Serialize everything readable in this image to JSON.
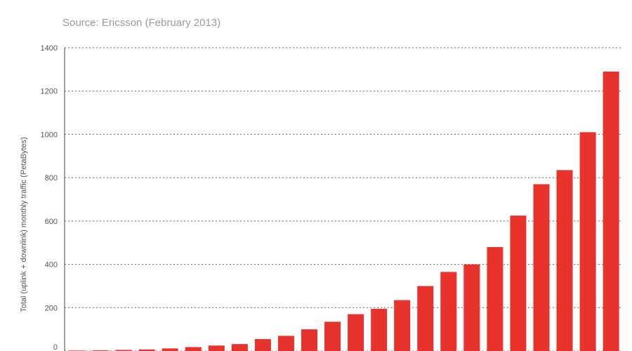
{
  "source_note": "Source: Ericsson (February 2013)",
  "colors": {
    "bar": "#e8322c",
    "grid": "#666666",
    "text": "#555555"
  },
  "chart_data": {
    "type": "bar",
    "title": "",
    "xlabel": "",
    "ylabel": "Total (uplink + downlink) monthly traffic (PetaBytes)",
    "ylim": [
      0,
      1400
    ],
    "yticks": [
      0,
      200,
      400,
      600,
      800,
      1000,
      1200,
      1400
    ],
    "grid": true,
    "series": [
      {
        "values": [
          2,
          3,
          5,
          7,
          12,
          18,
          25,
          32,
          55,
          70,
          100,
          135,
          170,
          195,
          235,
          300,
          365,
          400,
          480,
          625,
          770,
          835,
          1010,
          1290
        ]
      }
    ]
  }
}
